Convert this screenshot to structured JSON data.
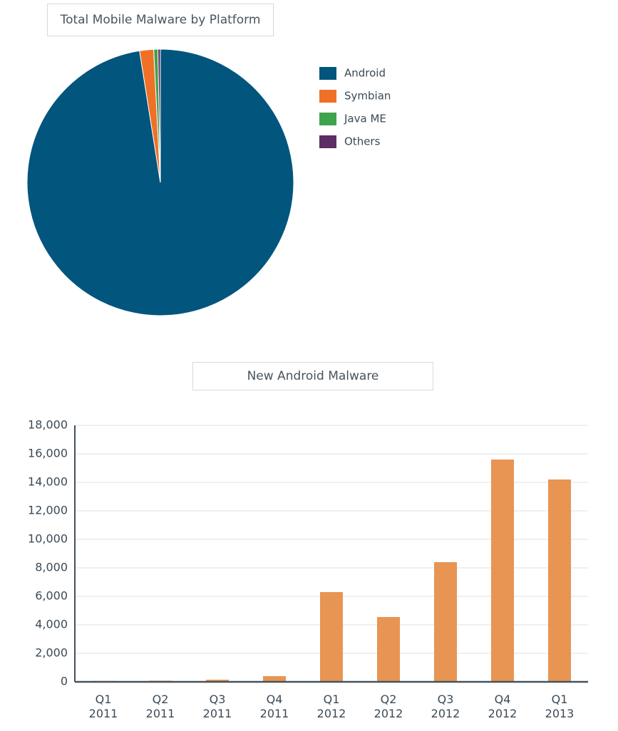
{
  "chart_data": [
    {
      "type": "pie",
      "title": "Total Mobile Malware by Platform",
      "categories": [
        "Android",
        "Symbian",
        "Java ME",
        "Others"
      ],
      "values": [
        97.5,
        1.7,
        0.5,
        0.3
      ],
      "colors": [
        "#02557d",
        "#ee7127",
        "#3fa34d",
        "#5c2e63"
      ],
      "legend": "right"
    },
    {
      "type": "bar",
      "title": "New Android Malware",
      "categories": [
        "Q1\n2011",
        "Q2\n2011",
        "Q3\n2011",
        "Q4\n2011",
        "Q1\n2012",
        "Q2\n2012",
        "Q3\n2012",
        "Q4\n2012",
        "Q1\n2013"
      ],
      "values": [
        60,
        80,
        150,
        400,
        6300,
        4550,
        8400,
        15600,
        14200
      ],
      "color": "#e89553",
      "ylim": [
        0,
        18000
      ],
      "yticks": [
        0,
        {
          "value": 2000,
          "label": "2,000"
        },
        {
          "value": 4000,
          "label": "4,000"
        },
        {
          "value": 6000,
          "label": "6,000"
        },
        {
          "value": 8000,
          "label": "8,000"
        },
        {
          "value": 10000,
          "label": "10,000"
        },
        {
          "value": 12000,
          "label": "12,000"
        },
        {
          "value": 14000,
          "label": "14,000"
        },
        {
          "value": 16000,
          "label": "16,000"
        },
        {
          "value": 18000,
          "label": "18,000"
        }
      ],
      "grid": true
    }
  ]
}
